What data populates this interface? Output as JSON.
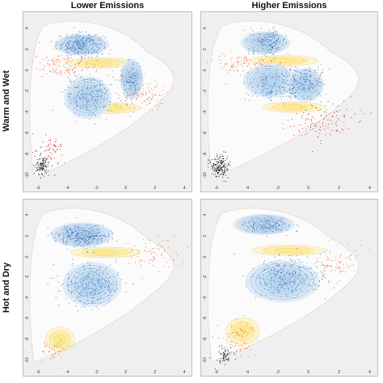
{
  "figure": {
    "columns": [
      "Lower Emissions",
      "Higher Emissions"
    ],
    "rows": [
      "Warm and Wet",
      "Hot and Dry"
    ]
  },
  "chart_data": [
    {
      "type": "scatter",
      "column": "Lower Emissions",
      "row": "Warm and Wet",
      "xlim": [
        -7,
        4.5
      ],
      "ylim": [
        -11.5,
        5.5
      ],
      "x_ticks": [
        -6,
        -4,
        -2,
        0,
        2,
        4
      ],
      "y_ticks": [
        -10,
        -8,
        -6,
        -4,
        -2,
        0,
        2,
        4
      ],
      "colors": {
        "background": "#efefef",
        "blue_cloud": "#ddeaf6",
        "blue_dense": "#3f73b8",
        "yellow_band": "#fbe886",
        "orange": "#f26b36",
        "red": "#c51b20",
        "black": "#111111"
      },
      "blue_kernels": [
        {
          "x": -3.0,
          "y": 2.4,
          "sx": 1.4,
          "sy": 0.75
        },
        {
          "x": -2.6,
          "y": -2.6,
          "sx": 1.2,
          "sy": 1.5
        },
        {
          "x": 0.4,
          "y": -0.8,
          "sx": 0.6,
          "sy": 1.4
        }
      ],
      "yellow_kernels": [
        {
          "x": -1.8,
          "y": 0.7,
          "sx": 2.2,
          "sy": 0.5
        },
        {
          "x": -1.0,
          "y": -3.6,
          "sx": 2.0,
          "sy": 0.5
        }
      ],
      "scatter_groups": [
        {
          "color": "#3f73b8",
          "center": [
            -3.1,
            2.4
          ],
          "spread": [
            0.8,
            0.55
          ],
          "n": 260
        },
        {
          "color": "#3f73b8",
          "center": [
            -2.4,
            -2.4
          ],
          "spread": [
            0.9,
            1.1
          ],
          "n": 220
        },
        {
          "color": "#3f73b8",
          "center": [
            0.4,
            -0.9
          ],
          "spread": [
            0.35,
            0.9
          ],
          "n": 120
        },
        {
          "color": "#f26b36",
          "center": [
            -4.3,
            0.4
          ],
          "spread": [
            1.0,
            0.6
          ],
          "n": 120
        },
        {
          "color": "#f26b36",
          "center": [
            1.3,
            -2.6
          ],
          "spread": [
            0.8,
            0.7
          ],
          "n": 90
        },
        {
          "color": "#c51b20",
          "center": [
            -5.1,
            -7.6
          ],
          "spread": [
            0.4,
            0.6
          ],
          "n": 60
        },
        {
          "color": "#111111",
          "center": [
            -5.7,
            -9.1
          ],
          "spread": [
            0.25,
            0.5
          ],
          "n": 110
        }
      ]
    },
    {
      "type": "scatter",
      "column": "Higher Emissions",
      "row": "Warm and Wet",
      "xlim": [
        -7,
        4.5
      ],
      "ylim": [
        -11.5,
        5.5
      ],
      "x_ticks": [
        -6,
        -4,
        -2,
        0,
        2,
        4
      ],
      "y_ticks": [
        -10,
        -8,
        -6,
        -4,
        -2,
        0,
        2,
        4
      ],
      "colors": {
        "background": "#efefef",
        "blue_cloud": "#ddeaf6",
        "blue_dense": "#3f73b8",
        "yellow_band": "#fbe886",
        "orange": "#f26b36",
        "red": "#c51b20",
        "black": "#111111"
      },
      "blue_kernels": [
        {
          "x": -2.8,
          "y": 2.6,
          "sx": 1.2,
          "sy": 0.8
        },
        {
          "x": -2.5,
          "y": -1.0,
          "sx": 1.3,
          "sy": 1.2
        },
        {
          "x": -0.2,
          "y": -1.4,
          "sx": 0.9,
          "sy": 1.2
        }
      ],
      "yellow_kernels": [
        {
          "x": -1.6,
          "y": 0.9,
          "sx": 2.2,
          "sy": 0.5
        },
        {
          "x": -1.0,
          "y": -3.5,
          "sx": 2.0,
          "sy": 0.5
        }
      ],
      "scatter_groups": [
        {
          "color": "#3f73b8",
          "center": [
            -2.6,
            2.7
          ],
          "spread": [
            0.6,
            0.6
          ],
          "n": 160
        },
        {
          "color": "#3f73b8",
          "center": [
            -2.0,
            -1.4
          ],
          "spread": [
            1.1,
            0.9
          ],
          "n": 200
        },
        {
          "color": "#3f73b8",
          "center": [
            0.0,
            -1.2
          ],
          "spread": [
            0.6,
            0.7
          ],
          "n": 120
        },
        {
          "color": "#f26b36",
          "center": [
            -4.2,
            0.6
          ],
          "spread": [
            1.0,
            0.5
          ],
          "n": 110
        },
        {
          "color": "#c51b20",
          "center": [
            0.9,
            -4.8
          ],
          "spread": [
            1.2,
            0.9
          ],
          "n": 120
        },
        {
          "color": "#111111",
          "center": [
            -5.8,
            -9.1
          ],
          "spread": [
            0.3,
            0.5
          ],
          "n": 180
        }
      ]
    },
    {
      "type": "scatter",
      "column": "Lower Emissions",
      "row": "Hot and Dry",
      "xlim": [
        -7,
        4.5
      ],
      "ylim": [
        -11.5,
        5.5
      ],
      "x_ticks": [
        -6,
        -4,
        -2,
        0,
        2,
        4
      ],
      "y_ticks": [
        -10,
        -8,
        -6,
        -4,
        -2,
        0,
        2,
        4
      ],
      "colors": {
        "background": "#efefef",
        "blue_cloud": "#ddeaf6",
        "blue_dense": "#3f73b8",
        "yellow_band": "#fbe886",
        "orange": "#f26b36",
        "red": "#c51b20",
        "black": "#111111"
      },
      "blue_kernels": [
        {
          "x": -3.0,
          "y": 2.1,
          "sx": 1.6,
          "sy": 0.9
        },
        {
          "x": -2.3,
          "y": -2.7,
          "sx": 1.5,
          "sy": 1.6
        }
      ],
      "yellow_kernels": [
        {
          "x": -1.4,
          "y": 0.4,
          "sx": 2.4,
          "sy": 0.5
        },
        {
          "x": -4.5,
          "y": -8.0,
          "sx": 1.0,
          "sy": 1.2
        }
      ],
      "scatter_groups": [
        {
          "color": "#3f73b8",
          "center": [
            -2.9,
            2.0
          ],
          "spread": [
            0.9,
            0.5
          ],
          "n": 300
        },
        {
          "color": "#3f73b8",
          "center": [
            -2.4,
            -2.8
          ],
          "spread": [
            1.0,
            1.0
          ],
          "n": 260
        },
        {
          "color": "#f26b36",
          "center": [
            1.8,
            0.2
          ],
          "spread": [
            1.0,
            0.8
          ],
          "n": 80
        },
        {
          "color": "#f26b36",
          "center": [
            -5.0,
            -9.0
          ],
          "spread": [
            0.5,
            0.6
          ],
          "n": 50
        }
      ]
    },
    {
      "type": "scatter",
      "column": "Higher Emissions",
      "row": "Hot and Dry",
      "xlim": [
        -7,
        4.5
      ],
      "ylim": [
        -11.5,
        5.5
      ],
      "x_ticks": [
        -6,
        -4,
        -2,
        0,
        2,
        4
      ],
      "y_ticks": [
        -10,
        -8,
        -6,
        -4,
        -2,
        0,
        2,
        4
      ],
      "colors": {
        "background": "#efefef",
        "blue_cloud": "#ddeaf6",
        "blue_dense": "#3f73b8",
        "yellow_band": "#fbe886",
        "orange": "#f26b36",
        "red": "#c51b20",
        "black": "#111111"
      },
      "blue_kernels": [
        {
          "x": -2.9,
          "y": 3.1,
          "sx": 1.5,
          "sy": 0.75
        },
        {
          "x": -1.7,
          "y": -2.4,
          "sx": 1.8,
          "sy": 1.5
        }
      ],
      "yellow_kernels": [
        {
          "x": -1.3,
          "y": 0.6,
          "sx": 2.4,
          "sy": 0.5
        },
        {
          "x": -4.3,
          "y": -7.2,
          "sx": 1.1,
          "sy": 1.3
        }
      ],
      "scatter_groups": [
        {
          "color": "#3f73b8",
          "center": [
            -2.6,
            3.0
          ],
          "spread": [
            0.8,
            0.4
          ],
          "n": 140
        },
        {
          "color": "#3f73b8",
          "center": [
            -1.4,
            -1.9
          ],
          "spread": [
            1.2,
            1.0
          ],
          "n": 300
        },
        {
          "color": "#f26b36",
          "center": [
            1.7,
            -0.6
          ],
          "spread": [
            0.9,
            0.9
          ],
          "n": 90
        },
        {
          "color": "#f26b36",
          "center": [
            -4.5,
            -7.8
          ],
          "spread": [
            0.6,
            0.8
          ],
          "n": 80
        },
        {
          "color": "#111111",
          "center": [
            -5.5,
            -9.6
          ],
          "spread": [
            0.3,
            0.4
          ],
          "n": 70
        }
      ]
    }
  ]
}
